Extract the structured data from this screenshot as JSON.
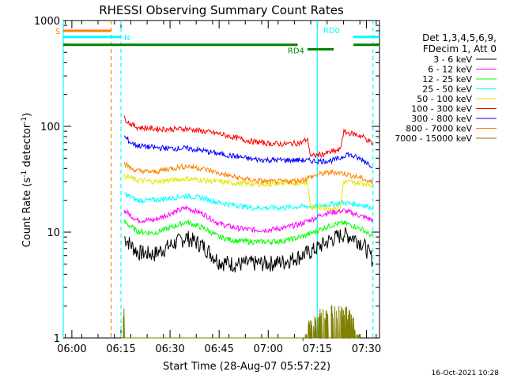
{
  "chart_data": {
    "type": "line",
    "title": "RHESSI Observing Summary Count Rates",
    "xlabel": "Start Time (28-Aug-07 05:57:22)",
    "ylabel_main": "Count Rate (s",
    "ylabel_sup1": "-1",
    "ylabel_mid": " detector",
    "ylabel_sup2": "-1",
    "ylabel_end": ")",
    "yscale": "log",
    "xlim": [
      "05:57:22",
      "07:34:00"
    ],
    "ylim": [
      1,
      1000
    ],
    "x_ticks": [
      "06:00",
      "06:15",
      "06:30",
      "06:45",
      "07:00",
      "07:15",
      "07:30"
    ],
    "y_ticks": [
      {
        "value": 1,
        "label": "1"
      },
      {
        "value": 10,
        "label": "10"
      },
      {
        "value": 100,
        "label": "100"
      },
      {
        "value": 1000,
        "label": "1000"
      }
    ],
    "legend_header": [
      "Det 1,3,4,5,6,9,",
      "FDecim 1, Att 0"
    ],
    "legend_placement": "right",
    "series": [
      {
        "name": "3 - 6 keV",
        "color": "#000000",
        "x": [
          "06:16",
          "06:20",
          "06:25",
          "06:30",
          "06:35",
          "06:40",
          "06:45",
          "06:50",
          "06:55",
          "07:00",
          "07:05",
          "07:10",
          "07:14",
          "07:17",
          "07:20",
          "07:23",
          "07:26",
          "07:29",
          "07:32"
        ],
        "values": [
          9,
          6.5,
          6.2,
          7.5,
          9,
          7.5,
          5.3,
          5.0,
          5.1,
          5.1,
          5.3,
          6.0,
          6.8,
          7.8,
          8.8,
          9.6,
          9.0,
          7.8,
          5.5
        ]
      },
      {
        "name": "6 - 12 keV",
        "color": "#ff00ff",
        "x": [
          "06:16",
          "06:20",
          "06:25",
          "06:30",
          "06:35",
          "06:40",
          "06:45",
          "06:50",
          "06:55",
          "07:00",
          "07:05",
          "07:10",
          "07:14",
          "07:17",
          "07:20",
          "07:23",
          "07:26",
          "07:29",
          "07:32"
        ],
        "values": [
          16,
          13,
          13,
          15,
          17,
          15,
          12,
          11,
          10.5,
          10.5,
          11,
          12,
          13.5,
          15,
          15.5,
          16,
          15,
          14,
          13
        ]
      },
      {
        "name": "12 - 25 keV",
        "color": "#00ff00",
        "x": [
          "06:16",
          "06:20",
          "06:25",
          "06:30",
          "06:35",
          "06:40",
          "06:45",
          "06:50",
          "06:55",
          "07:00",
          "07:05",
          "07:10",
          "07:14",
          "07:17",
          "07:20",
          "07:23",
          "07:26",
          "07:29",
          "07:32"
        ],
        "values": [
          12.5,
          10.2,
          9.8,
          11,
          12.5,
          11,
          9,
          8.3,
          8.1,
          8.1,
          8.3,
          9,
          10,
          11,
          11.8,
          12.2,
          11.5,
          10.5,
          9
        ]
      },
      {
        "name": "25 - 50 keV",
        "color": "#00ffff",
        "x": [
          "06:16",
          "06:20",
          "06:25",
          "06:30",
          "06:35",
          "06:40",
          "06:45",
          "06:50",
          "06:55",
          "07:00",
          "07:05",
          "07:10",
          "07:14",
          "07:17",
          "07:20",
          "07:23",
          "07:26",
          "07:29",
          "07:32"
        ],
        "values": [
          23,
          20,
          20,
          21,
          22,
          21,
          19,
          18,
          17,
          17,
          17,
          17.5,
          17.5,
          18,
          18.5,
          19,
          18.5,
          18,
          17
        ]
      },
      {
        "name": "50 - 100 keV",
        "color": "#e6e600",
        "x": [
          "06:16",
          "06:20",
          "06:25",
          "06:30",
          "06:35",
          "06:40",
          "06:45",
          "06:50",
          "06:55",
          "07:00",
          "07:05",
          "07:10",
          "07:12",
          "07:13",
          "07:17",
          "07:22",
          "07:23",
          "07:26",
          "07:29",
          "07:32"
        ],
        "values": [
          34,
          31,
          30,
          31,
          32,
          31,
          30,
          29,
          28.5,
          28.5,
          29,
          29.5,
          30,
          17,
          17,
          17,
          30,
          29.5,
          29,
          28
        ]
      },
      {
        "name": "100 - 300 keV",
        "color": "#ff0000",
        "x": [
          "06:16",
          "06:18",
          "06:20",
          "06:25",
          "06:30",
          "06:35",
          "06:40",
          "06:45",
          "06:50",
          "06:55",
          "07:00",
          "07:05",
          "07:10",
          "07:12",
          "07:13",
          "07:17",
          "07:22",
          "07:23",
          "07:26",
          "07:29",
          "07:32"
        ],
        "values": [
          120,
          105,
          98,
          95,
          94,
          95,
          90,
          85,
          78,
          72,
          69,
          68,
          70,
          76,
          52,
          55,
          60,
          88,
          85,
          80,
          68
        ]
      },
      {
        "name": "300 - 800 keV",
        "color": "#0000ff",
        "x": [
          "06:16",
          "06:18",
          "06:20",
          "06:25",
          "06:30",
          "06:35",
          "06:40",
          "06:45",
          "06:50",
          "06:55",
          "07:00",
          "07:05",
          "07:10",
          "07:14",
          "07:17",
          "07:20",
          "07:22",
          "07:24",
          "07:26",
          "07:29",
          "07:32"
        ],
        "values": [
          80,
          70,
          66,
          63,
          62,
          62,
          59,
          55,
          52,
          49,
          48,
          48,
          48,
          47,
          47,
          48,
          50,
          55,
          52,
          48,
          42
        ]
      },
      {
        "name": "800 - 7000 keV",
        "color": "#ff8000",
        "x": [
          "06:16",
          "06:18",
          "06:20",
          "06:25",
          "06:30",
          "06:35",
          "06:40",
          "06:45",
          "06:50",
          "06:55",
          "07:00",
          "07:05",
          "07:10",
          "07:14",
          "07:17",
          "07:20",
          "07:23",
          "07:26",
          "07:29",
          "07:32"
        ],
        "values": [
          45,
          40,
          38,
          37,
          40,
          42,
          40,
          36,
          33,
          31,
          30,
          30,
          31,
          34,
          36,
          37,
          36,
          34,
          32,
          29
        ]
      },
      {
        "name": "7000 - 15000 keV",
        "color": "#808000",
        "x": [
          "06:15",
          "06:16",
          "06:16",
          "07:10",
          "07:15",
          "07:20",
          "07:25",
          "07:28"
        ],
        "values": [
          1,
          1.9,
          1,
          1,
          1.7,
          1.8,
          1.7,
          1
        ]
      }
    ],
    "annotations": [
      {
        "label": "S",
        "color": "#ff8000",
        "x0": "05:57:22",
        "x1": "06:12",
        "y": 800
      },
      {
        "label": "N",
        "color": "#00ffff",
        "x0": "05:57:22",
        "x1": "06:15",
        "y": 700
      },
      {
        "label": "",
        "color": "#008000",
        "x0": "05:57:22",
        "x1": "07:09",
        "y": 590
      },
      {
        "label": "RD0",
        "color": "#00ffff",
        "x0": "07:26",
        "x1": "07:34",
        "y": 700
      },
      {
        "label": "RD4",
        "color": "#008000",
        "x0": "07:12",
        "x1": "07:20",
        "y": 535
      },
      {
        "label": "",
        "color": "#008000",
        "x0": "07:26",
        "x1": "07:34",
        "y": 590
      }
    ],
    "vlines": [
      {
        "x": "05:57:22",
        "color": "#00ffff",
        "style": "solid"
      },
      {
        "x": "06:12",
        "color": "#ff8000",
        "style": "dashed"
      },
      {
        "x": "06:15",
        "color": "#00ffff",
        "style": "dashed"
      },
      {
        "x": "07:15",
        "color": "#00ffff",
        "style": "solid"
      },
      {
        "x": "07:32",
        "color": "#00ffff",
        "style": "dashed"
      }
    ]
  },
  "footer": {
    "date_stamp": "16-Oct-2021 10:28"
  }
}
